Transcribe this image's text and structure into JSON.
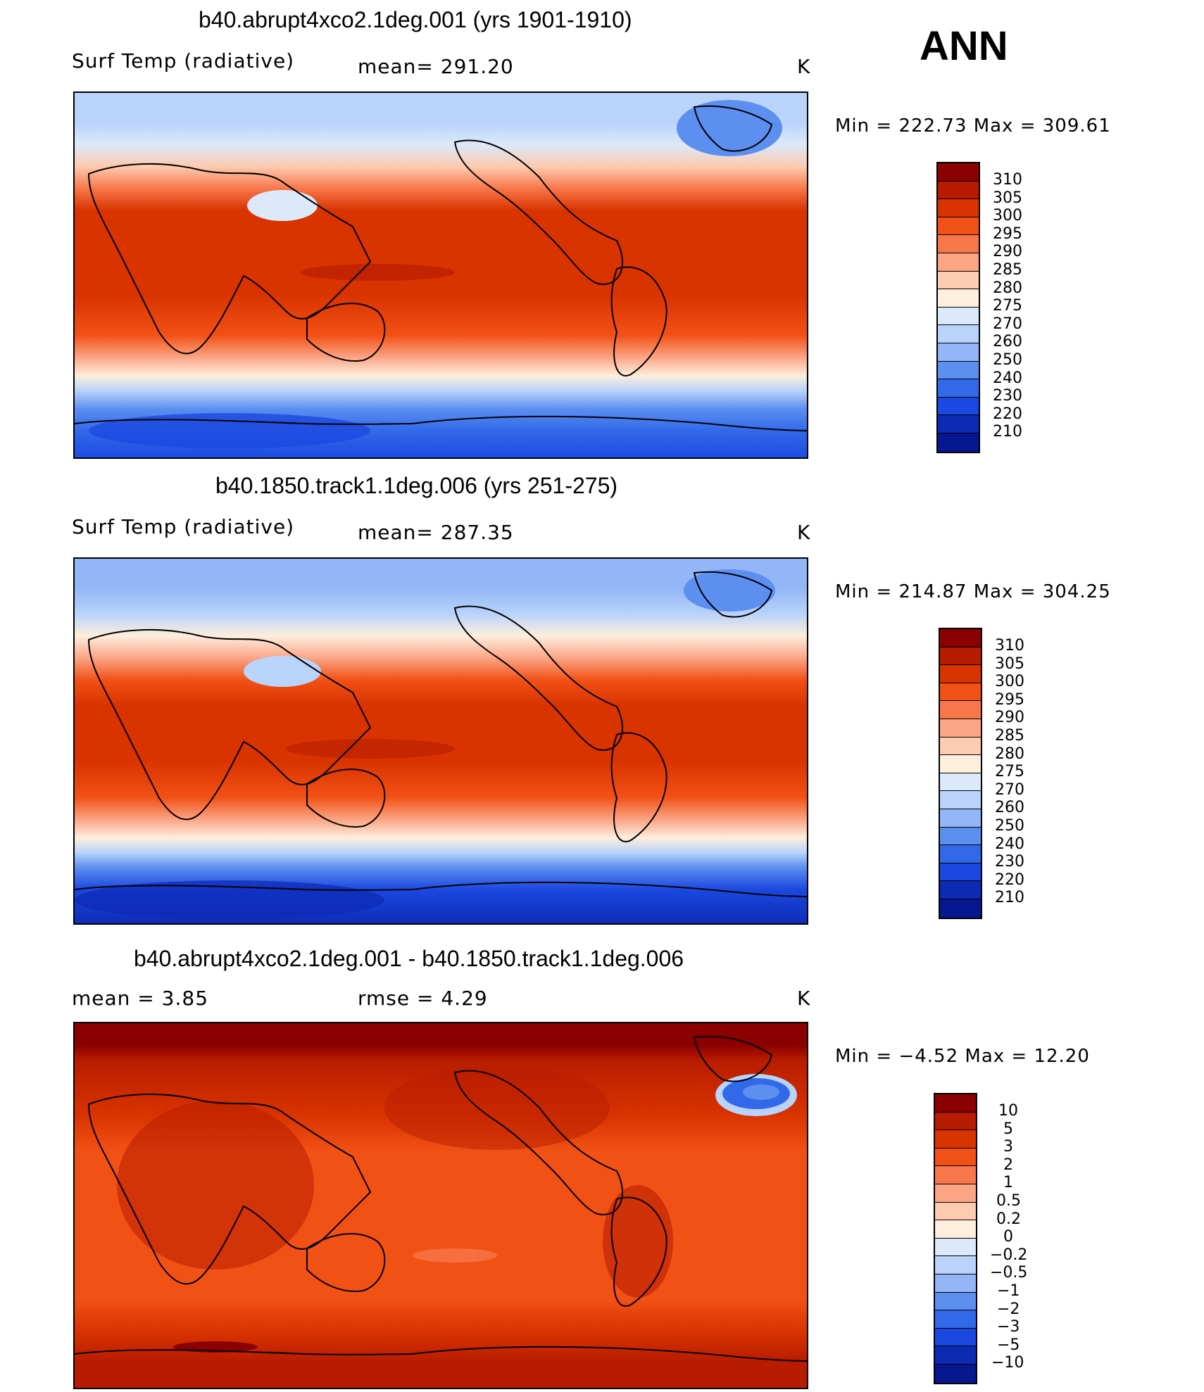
{
  "season": "ANN",
  "panels": [
    {
      "title": "b40.abrupt4xco2.1deg.001 (yrs 1901-1910)",
      "left_label": "Surf Temp (radiative)",
      "center_label": "mean=  291.20",
      "units": "K",
      "min_max": "Min  =  222.73  Max  =  309.61"
    },
    {
      "title": "b40.1850.track1.1deg.006 (yrs 251-275)",
      "left_label": "Surf Temp (radiative)",
      "center_label": "mean=  287.35",
      "units": "K",
      "min_max": "Min  =  214.87  Max  =  304.25"
    },
    {
      "title": "b40.abrupt4xco2.1deg.001 - b40.1850.track1.1deg.006",
      "left_label": "mean  =     3.85",
      "center_label": "rmse  =     4.29",
      "units": "K",
      "min_max": "Min  =    −4.52  Max  =    12.20"
    }
  ],
  "colorbars": {
    "absolute": {
      "labels": [
        "310",
        "305",
        "300",
        "295",
        "290",
        "285",
        "280",
        "275",
        "270",
        "260",
        "250",
        "240",
        "230",
        "220",
        "210"
      ],
      "colors": [
        "#8b0000",
        "#b81c00",
        "#d93300",
        "#f25116",
        "#f8774a",
        "#fba585",
        "#fccbb0",
        "#feeedd",
        "#dbe9fa",
        "#b9d3fa",
        "#92b6f7",
        "#5d8ff0",
        "#3269ea",
        "#1b48e0",
        "#0d2ab5",
        "#061790"
      ]
    },
    "difference": {
      "labels": [
        "10",
        "5",
        "3",
        "2",
        "1",
        "0.5",
        "0.2",
        "0",
        "−0.2",
        "−0.5",
        "−1",
        "−2",
        "−3",
        "−5",
        "−10"
      ],
      "colors": [
        "#8b0000",
        "#b81c00",
        "#d93300",
        "#f25116",
        "#f8774a",
        "#fba585",
        "#fccbb0",
        "#feeedd",
        "#dbe9fa",
        "#b9d3fa",
        "#92b6f7",
        "#5d8ff0",
        "#3269ea",
        "#1b48e0",
        "#0d2ab5",
        "#061790"
      ]
    }
  }
}
